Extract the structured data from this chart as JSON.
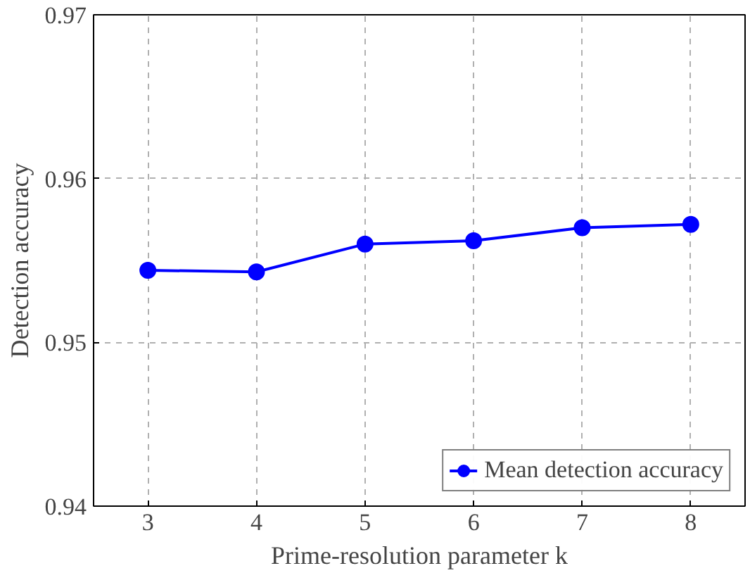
{
  "chart_data": {
    "type": "line",
    "xlabel": "Prime-resolution parameter k",
    "ylabel": "Detection accuracy",
    "x": [
      3,
      4,
      5,
      6,
      7,
      8
    ],
    "series": [
      {
        "name": "Mean detection accuracy",
        "color": "#0000ff",
        "values": [
          0.9544,
          0.9543,
          0.956,
          0.9562,
          0.957,
          0.9572
        ]
      }
    ],
    "xlim": [
      2.5,
      8.5
    ],
    "xticks": [
      3,
      4,
      5,
      6,
      7,
      8
    ],
    "ylim": [
      0.94,
      0.97
    ],
    "yticks": [
      {
        "value": 0.94,
        "label": "0.94"
      },
      {
        "value": 0.95,
        "label": "0.95"
      },
      {
        "value": 0.96,
        "label": "0.96"
      },
      {
        "value": 0.97,
        "label": "0.97"
      }
    ],
    "grid": true,
    "legend": "bottom right",
    "marker": "circle",
    "line_style": "solid"
  }
}
